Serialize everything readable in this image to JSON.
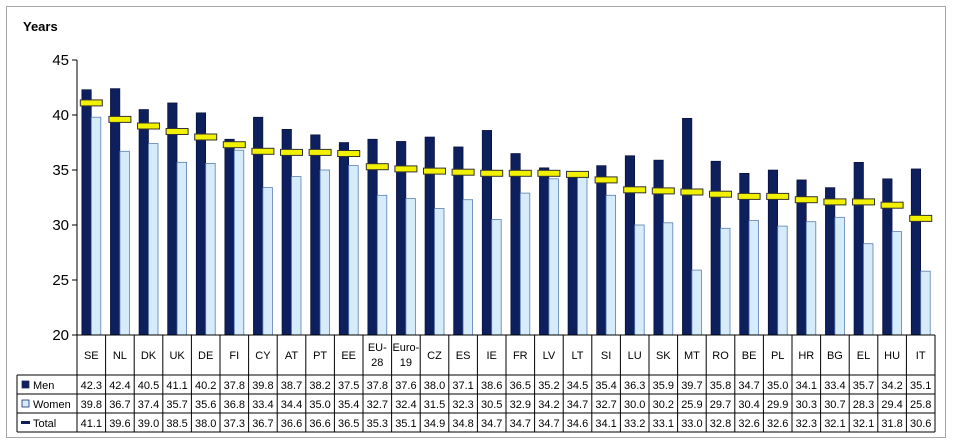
{
  "chart_data": {
    "type": "bar",
    "ylabel": "Years",
    "ylim": [
      20,
      45
    ],
    "yticks": [
      20,
      25,
      30,
      35,
      40,
      45
    ],
    "grid": false,
    "legend": "table-left",
    "categories": [
      "SE",
      "NL",
      "DK",
      "UK",
      "DE",
      "FI",
      "CY",
      "AT",
      "PT",
      "EE",
      "EU-28",
      "Euro-19",
      "CZ",
      "ES",
      "IE",
      "FR",
      "LV",
      "LT",
      "SI",
      "LU",
      "SK",
      "MT",
      "RO",
      "BE",
      "PL",
      "HR",
      "BG",
      "EL",
      "HU",
      "IT"
    ],
    "series": [
      {
        "name": "Men",
        "kind": "bar",
        "color": "#0d1f5c",
        "values": [
          42.3,
          42.4,
          40.5,
          41.1,
          40.2,
          37.8,
          39.8,
          38.7,
          38.2,
          37.5,
          37.8,
          37.6,
          38.0,
          37.1,
          38.6,
          36.5,
          35.2,
          34.5,
          35.4,
          36.3,
          35.9,
          39.7,
          35.8,
          34.7,
          35.0,
          34.1,
          33.4,
          35.7,
          34.2,
          35.1
        ]
      },
      {
        "name": "Women",
        "kind": "bar",
        "color": "#d6ecfa",
        "values": [
          39.8,
          36.7,
          37.4,
          35.7,
          35.6,
          36.8,
          33.4,
          34.4,
          35.0,
          35.4,
          32.7,
          32.4,
          31.5,
          32.3,
          30.5,
          32.9,
          34.2,
          34.7,
          32.7,
          30.0,
          30.2,
          25.9,
          29.7,
          30.4,
          29.9,
          30.3,
          30.7,
          28.3,
          29.4,
          25.8
        ]
      },
      {
        "name": "Total",
        "kind": "marker",
        "color": "#f2f200",
        "values": [
          41.1,
          39.6,
          39.0,
          38.5,
          38.0,
          37.3,
          36.7,
          36.6,
          36.6,
          36.5,
          35.3,
          35.1,
          34.9,
          34.8,
          34.7,
          34.7,
          34.7,
          34.6,
          34.1,
          33.2,
          33.1,
          33.0,
          32.8,
          32.6,
          32.6,
          32.3,
          32.1,
          32.1,
          31.8,
          30.6
        ]
      }
    ]
  }
}
